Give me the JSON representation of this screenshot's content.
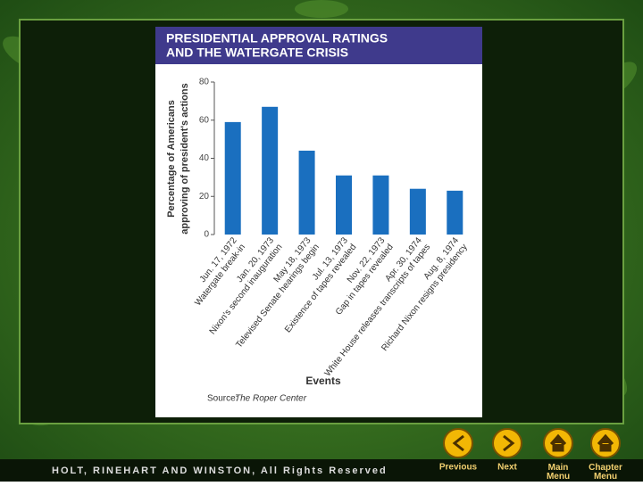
{
  "chart_data": {
    "type": "bar",
    "title": [
      "PRESIDENTIAL APPROVAL RATINGS",
      "AND THE WATERGATE CRISIS"
    ],
    "y_label": [
      "Percentage of Americans",
      "approving of president's actions"
    ],
    "x_label": "Events",
    "source": "Source:",
    "source_name": "The Roper Center",
    "categories": [
      "Jun. 17, 1972",
      "Jan. 20, 1973",
      "May 18, 1973",
      "Jul. 13, 1973",
      "Nov. 22, 1973",
      "Apr. 30, 1974",
      "Aug. 8, 1974"
    ],
    "category_notes": [
      "Watergate break-in",
      "Nixon's second inauguration",
      "Televised Senate hearings begin",
      "Existence of tapes revealed",
      "Gap in tapes revealed",
      "White House releases transcripts of tapes",
      "Richard Nixon resigns presidency"
    ],
    "values": [
      59,
      67,
      44,
      31,
      31,
      24,
      23
    ],
    "color": "#1a6fbf",
    "ylim": [
      0,
      80
    ],
    "yticks": [
      0,
      20,
      40,
      60,
      80
    ],
    "grid": false
  },
  "footer": "HOLT, RINEHART AND WINSTON, All Rights Reserved",
  "nav": [
    "Previous",
    "Next",
    "Main Menu",
    "Chapter Menu"
  ]
}
